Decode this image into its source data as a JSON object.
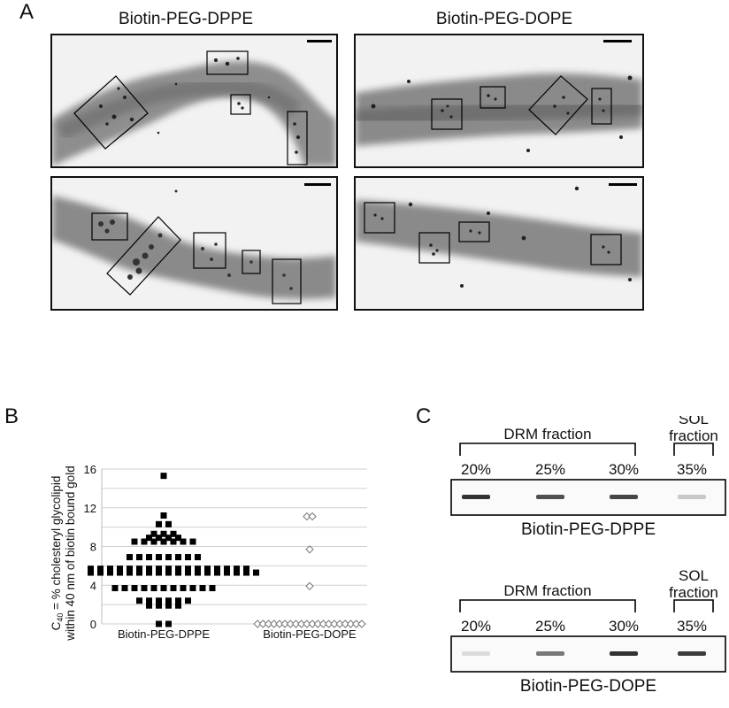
{
  "panel_a": {
    "letter": "A",
    "titles": [
      "Biotin-PEG-DPPE",
      "Biotin-PEG-DOPE"
    ]
  },
  "panel_b": {
    "letter": "B",
    "ylabel_line1": "C40 = % cholesteryl glycolipid",
    "ylabel_line2": "within 40 nm of biotin bound gold",
    "ylabel_c": "C",
    "ylabel_sub": "40",
    "ylabel_rest": " = % cholesteryl glycolipid",
    "yticks": [
      "0",
      "4",
      "8",
      "12",
      "16"
    ]
  },
  "chart_data": {
    "type": "scatter",
    "title": "",
    "xlabel": "",
    "ylabel": "C40 = % cholesteryl glycolipid within 40 nm of biotin bound gold",
    "ylim": [
      0,
      16
    ],
    "grid": true,
    "categories": [
      "Biotin-PEG-DPPE",
      "Biotin-PEG-DOPE"
    ],
    "series": [
      {
        "name": "Biotin-PEG-DPPE",
        "marker": "filled-square",
        "color": "#000000",
        "x": [
          1,
          1,
          1,
          1,
          1,
          1,
          1,
          1,
          1,
          1,
          1,
          1,
          1,
          1,
          1,
          1,
          1,
          1,
          1,
          1,
          1,
          1,
          1,
          1,
          1,
          1,
          1,
          1,
          1,
          1,
          1,
          1,
          1,
          1,
          1,
          1,
          1,
          1,
          1,
          1,
          1,
          1,
          1,
          1,
          1,
          1,
          1,
          1,
          1,
          1,
          1,
          1,
          1,
          1,
          1,
          1,
          1,
          1,
          1,
          1,
          1,
          1,
          1,
          1,
          1,
          1,
          1,
          1,
          1,
          1,
          1,
          1,
          1,
          1,
          1,
          1,
          1,
          1,
          1,
          1,
          1,
          1,
          1,
          1,
          1,
          1,
          1
        ],
        "y": [
          15.3,
          11.2,
          10.3,
          10.3,
          9.3,
          9.3,
          9.3,
          8.9,
          8.9,
          8.9,
          8.9,
          8.5,
          8.5,
          8.5,
          8.5,
          8.5,
          8.5,
          8.5,
          6.9,
          6.9,
          6.9,
          6.9,
          6.9,
          6.9,
          6.9,
          6.9,
          5.7,
          5.7,
          5.7,
          5.7,
          5.7,
          5.7,
          5.7,
          5.7,
          5.7,
          5.7,
          5.7,
          5.7,
          5.7,
          5.7,
          5.7,
          5.7,
          5.7,
          5.7,
          5.3,
          5.3,
          5.3,
          5.3,
          5.3,
          5.3,
          5.3,
          5.3,
          5.3,
          5.3,
          5.3,
          5.3,
          5.3,
          5.3,
          5.3,
          5.3,
          5.3,
          5.3,
          5.3,
          5.3,
          3.7,
          3.7,
          3.7,
          3.7,
          3.7,
          3.7,
          3.7,
          3.7,
          3.7,
          3.7,
          3.7,
          2.4,
          2.4,
          2.4,
          2.4,
          2.4,
          2.4,
          1.9,
          1.9,
          1.9,
          1.9,
          0,
          0
        ]
      },
      {
        "name": "Biotin-PEG-DOPE",
        "marker": "open-diamond",
        "color": "#777777",
        "x": [
          2,
          2,
          2,
          2,
          2,
          2,
          2,
          2,
          2,
          2,
          2,
          2,
          2,
          2,
          2,
          2,
          2,
          2,
          2,
          2,
          2,
          2,
          2,
          2
        ],
        "y": [
          11.1,
          11.1,
          7.7,
          3.9,
          0,
          0,
          0,
          0,
          0,
          0,
          0,
          0,
          0,
          0,
          0,
          0,
          0,
          0,
          0,
          0,
          0,
          0,
          0,
          0
        ]
      }
    ]
  },
  "panel_c": {
    "letter": "C",
    "blots": [
      {
        "name": "Biotin-PEG-DPPE",
        "drm_label": "DRM fraction",
        "sol_label_line1": "SOL",
        "sol_label_line2": "fraction",
        "lanes": [
          "20%",
          "25%",
          "30%",
          "35%"
        ],
        "band_intensity": [
          0.9,
          0.75,
          0.8,
          0.15
        ]
      },
      {
        "name": "Biotin-PEG-DOPE",
        "drm_label": "DRM fraction",
        "sol_label_line1": "SOL",
        "sol_label_line2": "fraction",
        "lanes": [
          "20%",
          "25%",
          "30%",
          "35%"
        ],
        "band_intensity": [
          0.05,
          0.55,
          0.9,
          0.85
        ]
      }
    ]
  }
}
